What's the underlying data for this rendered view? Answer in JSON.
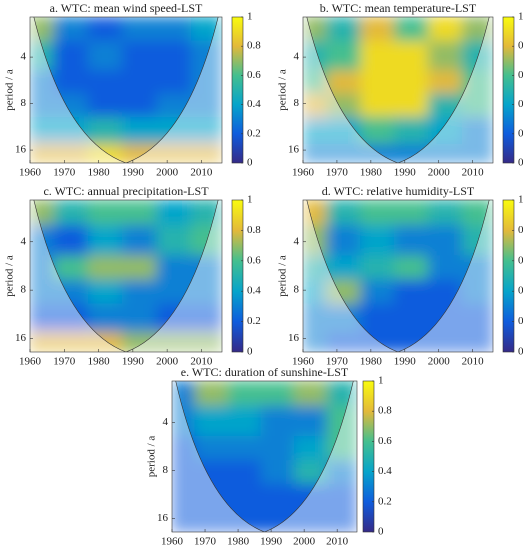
{
  "chart_data": [
    {
      "type": "heatmap",
      "title": "a. WTC: mean wind speed-LST",
      "y_label": "period / a",
      "x": [
        1962,
        1972,
        1982,
        1992,
        2002,
        2012
      ],
      "y": [
        2.5,
        4,
        6,
        8,
        12,
        18
      ],
      "z": [
        [
          0.7,
          0.3,
          0.2,
          0.3,
          0.3,
          0.4
        ],
        [
          0.5,
          0.2,
          0.3,
          0.2,
          0.2,
          0.3
        ],
        [
          0.3,
          0.2,
          0.2,
          0.2,
          0.2,
          0.3
        ],
        [
          0.3,
          0.3,
          0.2,
          0.2,
          0.3,
          0.3
        ],
        [
          0.4,
          0.4,
          0.5,
          0.4,
          0.4,
          0.4
        ],
        [
          0.8,
          0.8,
          0.9,
          0.8,
          0.8,
          0.8
        ]
      ],
      "xlim": [
        1960,
        2016
      ],
      "xticks": [
        1960,
        1970,
        1980,
        1990,
        2000,
        2010
      ],
      "ylim": [
        2.2,
        19.4
      ],
      "yticks": [
        4,
        8,
        16
      ],
      "y_log": true,
      "y_inverted": true,
      "colorbar": {
        "lim": [
          0,
          1
        ],
        "ticks": [
          0,
          0.2,
          0.4,
          0.6,
          0.8,
          1
        ]
      }
    },
    {
      "type": "heatmap",
      "title": "b. WTC: mean temperature-LST",
      "y_label": "period / a",
      "x": [
        1962,
        1972,
        1982,
        1992,
        2002,
        2012
      ],
      "y": [
        2.5,
        4,
        6,
        8,
        12,
        18
      ],
      "z": [
        [
          0.7,
          0.5,
          0.8,
          0.6,
          0.9,
          0.7
        ],
        [
          0.5,
          0.6,
          0.9,
          0.9,
          0.7,
          0.5
        ],
        [
          0.6,
          0.8,
          0.9,
          0.9,
          0.8,
          0.6
        ],
        [
          0.8,
          0.7,
          0.9,
          0.9,
          0.5,
          0.6
        ],
        [
          0.4,
          0.4,
          0.6,
          0.5,
          0.4,
          0.3
        ],
        [
          0.3,
          0.3,
          0.3,
          0.3,
          0.3,
          0.3
        ]
      ],
      "xlim": [
        1960,
        2016
      ],
      "xticks": [
        1960,
        1970,
        1980,
        1990,
        2000,
        2010
      ],
      "ylim": [
        2.2,
        19.4
      ],
      "yticks": [
        4,
        8,
        16
      ],
      "y_log": true,
      "y_inverted": true,
      "colorbar": {
        "lim": [
          0,
          1
        ],
        "ticks": [
          0,
          0.2,
          0.4,
          0.6,
          0.8,
          1
        ]
      }
    },
    {
      "type": "heatmap",
      "title": "c. WTC: annual precipitation-LST",
      "y_label": "period / a",
      "x": [
        1962,
        1972,
        1982,
        1992,
        2002,
        2012
      ],
      "y": [
        2.5,
        4,
        6,
        8,
        12,
        18
      ],
      "z": [
        [
          0.7,
          0.5,
          0.6,
          0.6,
          0.4,
          0.5
        ],
        [
          0.3,
          0.2,
          0.4,
          0.3,
          0.5,
          0.6
        ],
        [
          0.3,
          0.6,
          0.7,
          0.7,
          0.3,
          0.3
        ],
        [
          0.3,
          0.3,
          0.4,
          0.3,
          0.3,
          0.3
        ],
        [
          0.2,
          0.2,
          0.3,
          0.3,
          0.2,
          0.2
        ],
        [
          0.8,
          0.8,
          0.8,
          0.7,
          0.7,
          0.7
        ]
      ],
      "xlim": [
        1960,
        2016
      ],
      "xticks": [
        1960,
        1970,
        1980,
        1990,
        2000,
        2010
      ],
      "ylim": [
        2.2,
        19.4
      ],
      "yticks": [
        4,
        8,
        16
      ],
      "y_log": true,
      "y_inverted": true,
      "colorbar": {
        "lim": [
          0,
          1
        ],
        "ticks": [
          0,
          0.2,
          0.4,
          0.6,
          0.8,
          1
        ]
      }
    },
    {
      "type": "heatmap",
      "title": "d. WTC: relative humidity-LST",
      "y_label": "period / a",
      "x": [
        1962,
        1972,
        1982,
        1992,
        2002,
        2012
      ],
      "y": [
        2.5,
        4,
        6,
        8,
        12,
        18
      ],
      "z": [
        [
          0.8,
          0.5,
          0.6,
          0.6,
          0.5,
          0.6
        ],
        [
          0.7,
          0.3,
          0.4,
          0.3,
          0.3,
          0.5
        ],
        [
          0.5,
          0.4,
          0.5,
          0.6,
          0.3,
          0.3
        ],
        [
          0.4,
          0.7,
          0.3,
          0.2,
          0.2,
          0.3
        ],
        [
          0.3,
          0.3,
          0.2,
          0.2,
          0.2,
          0.2
        ],
        [
          0.3,
          0.2,
          0.2,
          0.2,
          0.2,
          0.2
        ]
      ],
      "xlim": [
        1960,
        2016
      ],
      "xticks": [
        1960,
        1970,
        1980,
        1990,
        2000,
        2010
      ],
      "ylim": [
        2.2,
        19.4
      ],
      "yticks": [
        4,
        8,
        16
      ],
      "y_log": true,
      "y_inverted": true,
      "colorbar": {
        "lim": [
          0,
          1
        ],
        "ticks": [
          0,
          0.2,
          0.4,
          0.6,
          0.8,
          1
        ]
      }
    },
    {
      "type": "heatmap",
      "title": "e. WTC: duration of sunshine-LST",
      "y_label": "period / a",
      "x": [
        1962,
        1972,
        1982,
        1992,
        2002,
        2012
      ],
      "y": [
        2.5,
        4,
        6,
        8,
        12,
        18
      ],
      "z": [
        [
          0.3,
          0.7,
          0.6,
          0.6,
          0.7,
          0.5
        ],
        [
          0.3,
          0.4,
          0.4,
          0.3,
          0.3,
          0.6
        ],
        [
          0.2,
          0.3,
          0.3,
          0.3,
          0.4,
          0.6
        ],
        [
          0.2,
          0.2,
          0.2,
          0.3,
          0.5,
          0.3
        ],
        [
          0.2,
          0.2,
          0.2,
          0.2,
          0.2,
          0.2
        ],
        [
          0.2,
          0.2,
          0.2,
          0.2,
          0.2,
          0.2
        ]
      ],
      "xlim": [
        1960,
        2016
      ],
      "xticks": [
        1960,
        1970,
        1980,
        1990,
        2000,
        2010
      ],
      "ylim": [
        2.2,
        19.4
      ],
      "yticks": [
        4,
        8,
        16
      ],
      "y_log": true,
      "y_inverted": true,
      "colorbar": {
        "lim": [
          0,
          1
        ],
        "ticks": [
          0,
          0.2,
          0.4,
          0.6,
          0.8,
          1
        ]
      }
    }
  ]
}
